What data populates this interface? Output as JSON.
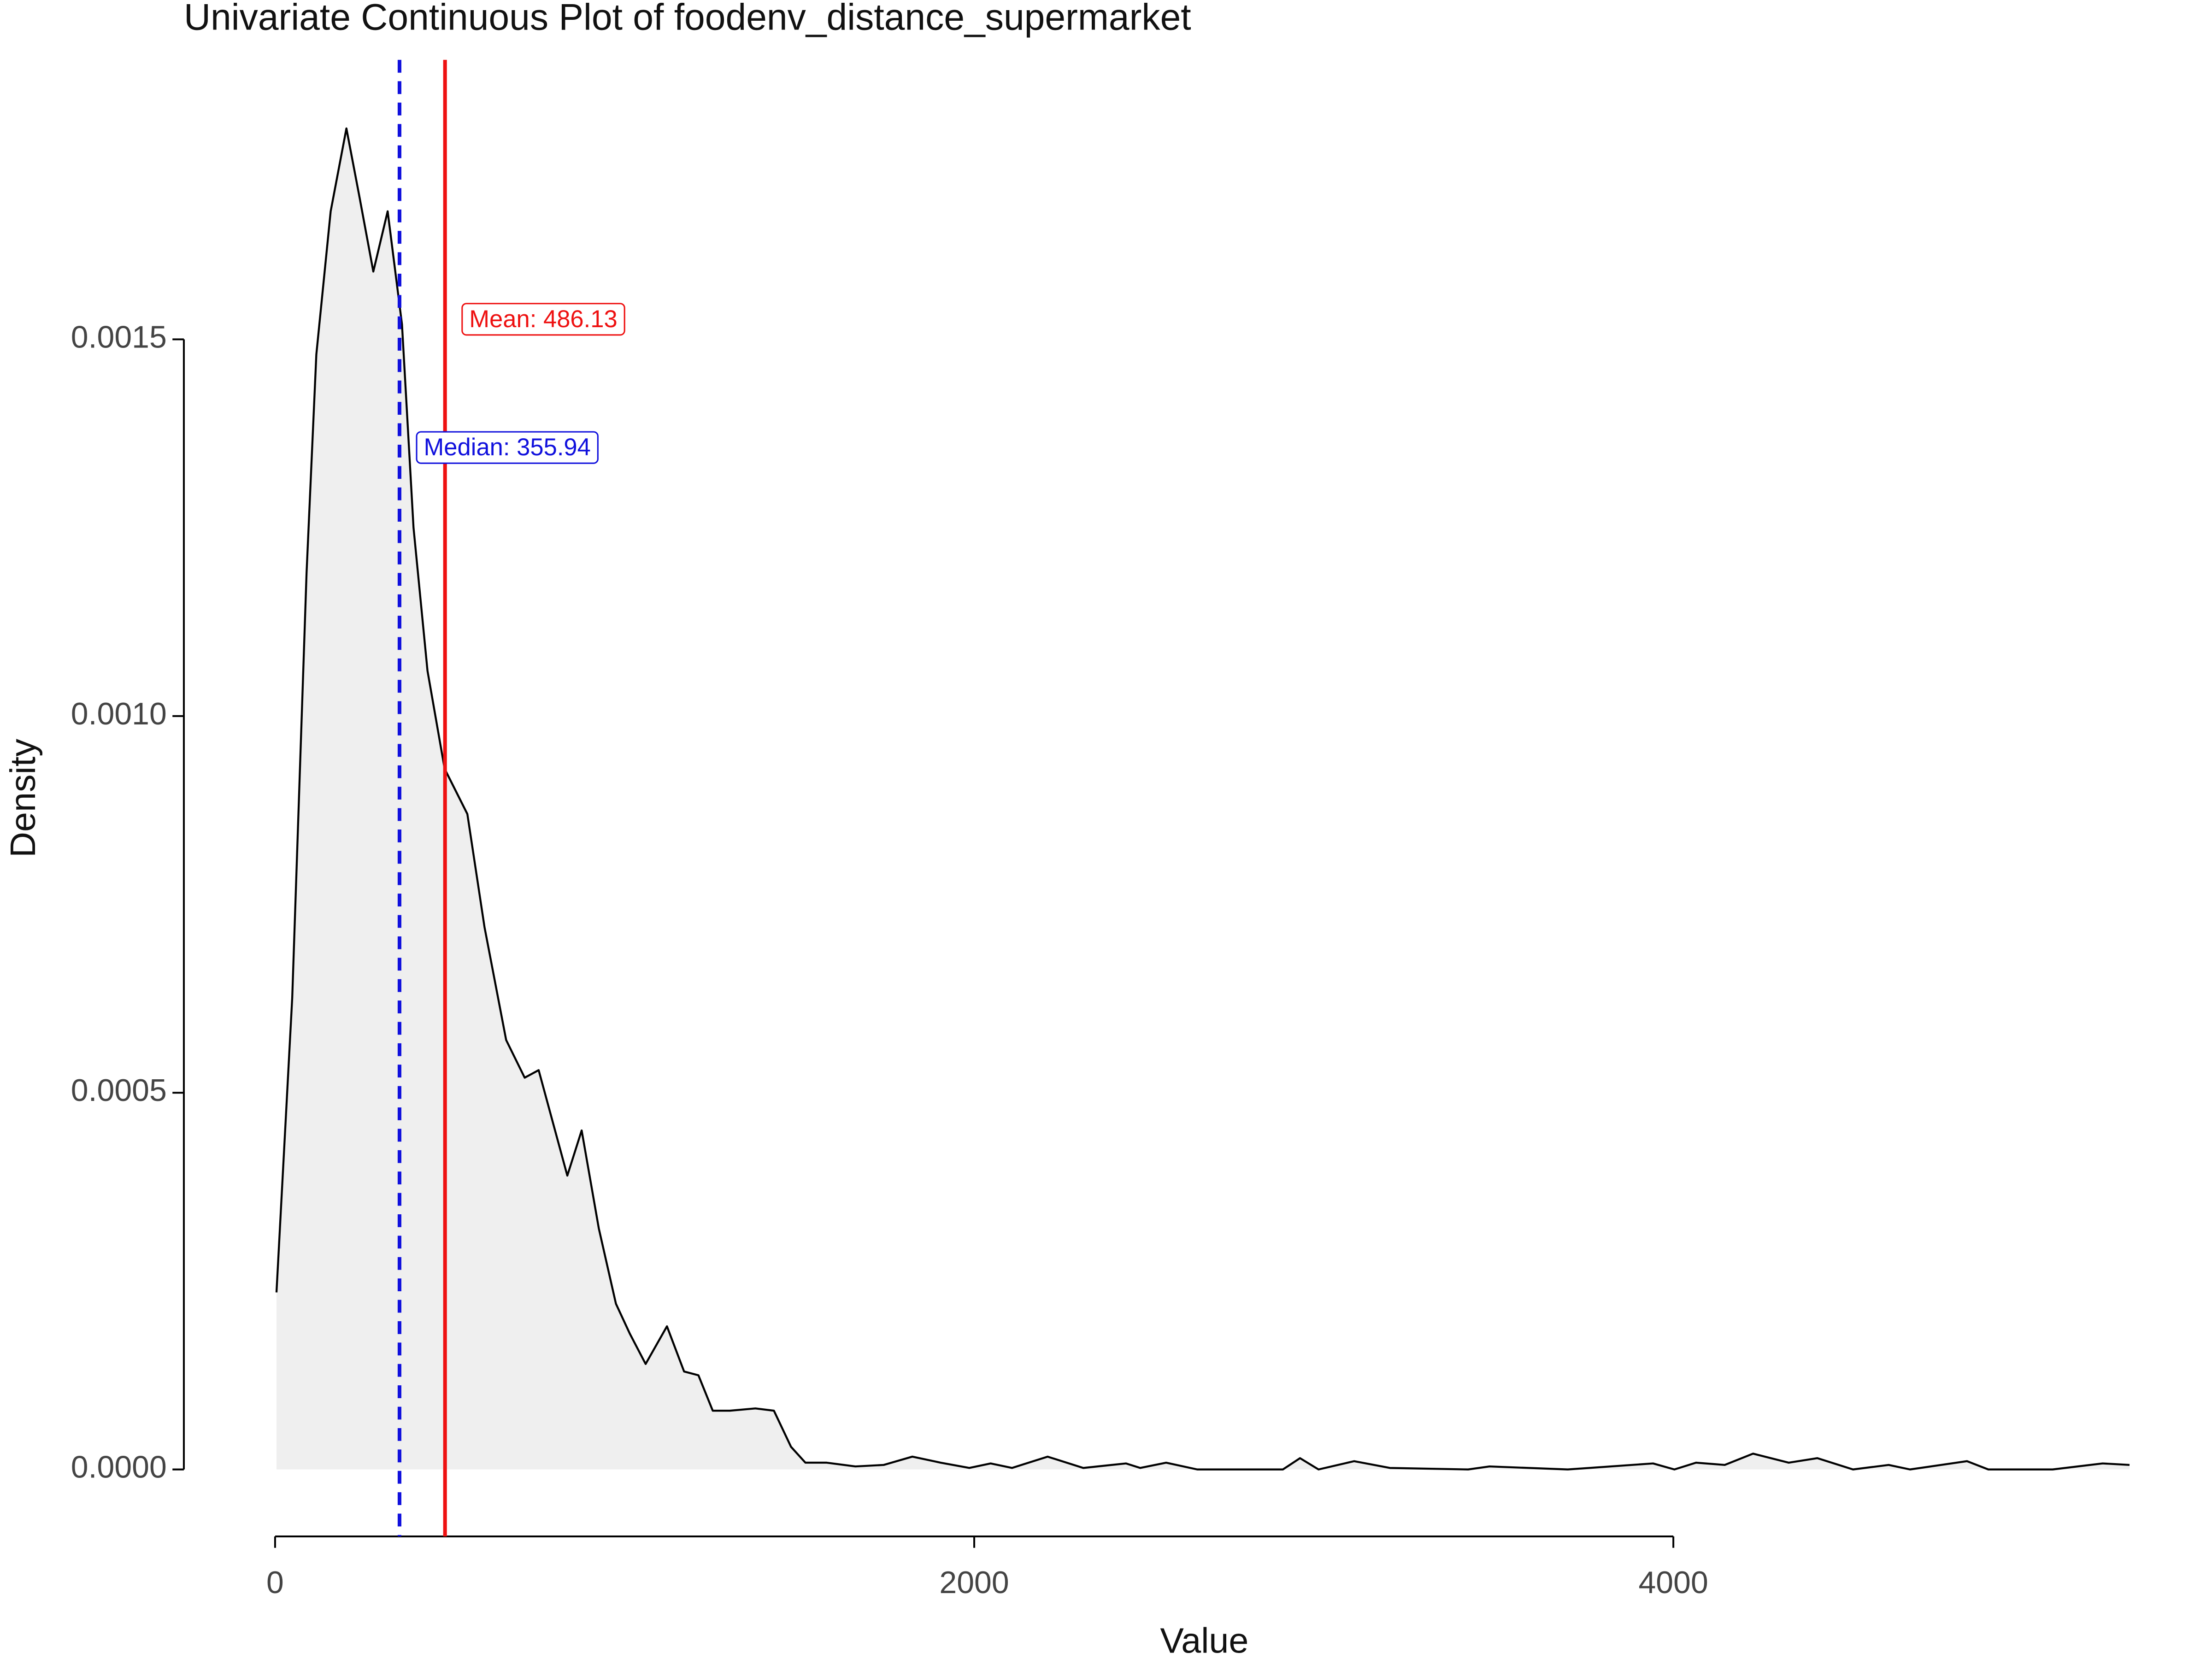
{
  "chart_data": {
    "type": "density",
    "title": "Univariate Continuous Plot of foodenv_distance_supermarket",
    "x_label": "Value",
    "y_label": "Density",
    "x": [
      4,
      49,
      90,
      118,
      159,
      204,
      241,
      281,
      322,
      363,
      396,
      436,
      485,
      550,
      599,
      661,
      714,
      754,
      795,
      836,
      877,
      926,
      975,
      1015,
      1060,
      1121,
      1170,
      1211,
      1252,
      1301,
      1374,
      1427,
      1476,
      1517,
      1578,
      1660,
      1741,
      1823,
      1904,
      1986,
      2047,
      2108,
      2210,
      2312,
      2434,
      2475,
      2549,
      2638,
      2883,
      2932,
      2985,
      3087,
      3189,
      3413,
      3474,
      3698,
      3942,
      4003,
      4065,
      4147,
      4228,
      4330,
      4412,
      4514,
      4616,
      4677,
      4840,
      4901,
      5085,
      5228,
      5305
    ],
    "values": [
      0.000235,
      0.000626,
      0.00119,
      0.00148,
      0.00167,
      0.00178,
      0.00169,
      0.00159,
      0.00167,
      0.00152,
      0.00125,
      0.00106,
      0.00093,
      0.00087,
      0.00072,
      0.00057,
      0.00052,
      0.00053,
      0.00046,
      0.00039,
      0.00045,
      0.00032,
      0.00022,
      0.00018,
      0.00014,
      0.00019,
      0.00013,
      0.000125,
      7.8e-05,
      7.8e-05,
      8.1e-05,
      7.8e-05,
      3e-05,
      9e-06,
      9e-06,
      4e-06,
      6e-06,
      1.7e-05,
      9e-06,
      2e-06,
      8e-06,
      2e-06,
      1.7e-05,
      2e-06,
      8e-06,
      2e-06,
      9e-06,
      0,
      0,
      1.5e-05,
      0,
      1.1e-05,
      2e-06,
      0,
      4e-06,
      0,
      8e-06,
      0,
      9e-06,
      6e-06,
      2.1e-05,
      9e-06,
      1.5e-05,
      0,
      6e-06,
      0,
      1.1e-05,
      0,
      0,
      8e-06,
      6e-06
    ],
    "color": "#000000",
    "fill": "#efefef",
    "xlim": [
      -261,
      5492
    ],
    "ylim": [
      -8.89e-05,
      0.001871
    ],
    "xticks": [
      0,
      2000,
      4000
    ],
    "yticks": [
      {
        "value": 0,
        "label": "0.0000"
      },
      0.0005,
      {
        "value": 0.001,
        "label": "0.0010"
      },
      0.0015
    ],
    "reference_lines": [
      {
        "value": 486.13,
        "label": "Mean: 486.13",
        "color": "#ee1111",
        "dashed": false
      },
      {
        "value": 355.94,
        "label": "Median: 355.94",
        "color": "#1111dd",
        "dashed": true
      }
    ]
  }
}
